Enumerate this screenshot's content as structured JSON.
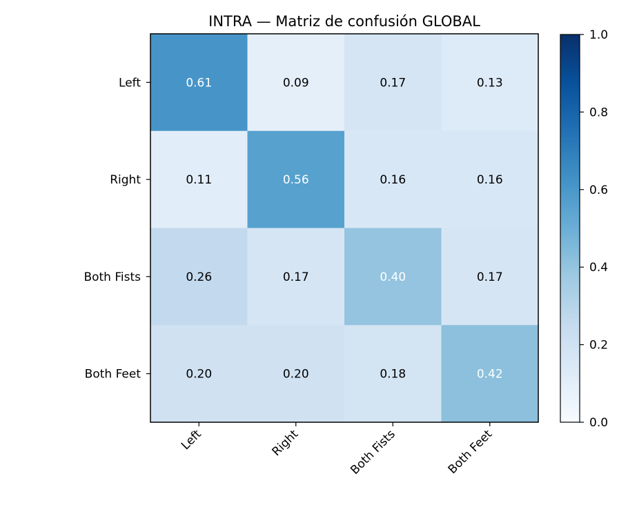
{
  "chart_data": {
    "type": "heatmap",
    "title": "INTRA — Matriz de confusión GLOBAL",
    "xlabel": "",
    "ylabel": "",
    "x_categories": [
      "Left",
      "Right",
      "Both Fists",
      "Both Feet"
    ],
    "y_categories": [
      "Left",
      "Right",
      "Both Fists",
      "Both Feet"
    ],
    "values": [
      [
        0.61,
        0.09,
        0.17,
        0.13
      ],
      [
        0.11,
        0.56,
        0.16,
        0.16
      ],
      [
        0.26,
        0.17,
        0.4,
        0.17
      ],
      [
        0.2,
        0.2,
        0.18,
        0.42
      ]
    ],
    "value_format": "2 decimals",
    "colormap": "Blues",
    "color_range": [
      0,
      1
    ],
    "colorbar": {
      "ticks": [
        0.0,
        0.2,
        0.4,
        0.6,
        0.8,
        1.0
      ],
      "tick_labels": [
        "0.0",
        "0.2",
        "0.4",
        "0.6",
        "0.8",
        "1.0"
      ]
    },
    "label_colors": {
      "dark": "#000000",
      "light": "#ffffff"
    },
    "x_tick_rotation_deg": 45,
    "grid": false
  }
}
